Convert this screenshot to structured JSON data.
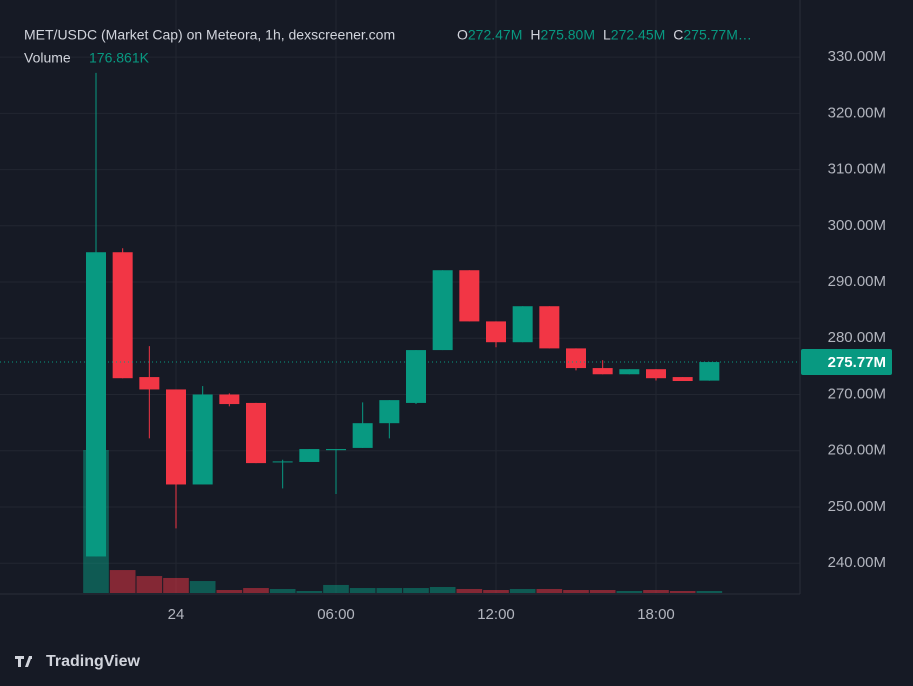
{
  "chart_data": {
    "type": "candlestick",
    "title": "MET/USDC (Market Cap) on Meteora, 1h, dexscreener.com",
    "ohlc_keys": [
      "O",
      "H",
      "L",
      "C"
    ],
    "ohlc_labels": [
      "272.47M",
      "275.80M",
      "272.45M",
      "275.77M…"
    ],
    "volume_title": "Volume",
    "volume_label": "176.861K",
    "last_price_label": "275.77M",
    "brand": "TradingView",
    "up_color": "#089981",
    "down_color": "#f23645",
    "x": [
      0,
      1,
      2,
      3,
      4,
      5,
      6,
      7,
      8,
      9,
      10,
      11,
      12,
      13,
      14,
      15,
      16,
      17,
      18,
      19,
      20,
      21,
      22,
      23
    ],
    "xlim": [
      -3.6,
      26.4
    ],
    "xticks": [
      {
        "value": 3,
        "label": "24"
      },
      {
        "value": 9,
        "label": "06:00"
      },
      {
        "value": 15,
        "label": "12:00"
      },
      {
        "value": 21,
        "label": "18:00"
      }
    ],
    "open": [
      241.2,
      295.3,
      273.1,
      270.9,
      254.0,
      270.0,
      268.5,
      258.0,
      258.0,
      260.1,
      260.5,
      264.9,
      268.5,
      277.9,
      292.1,
      283.0,
      279.3,
      285.7,
      278.2,
      274.7,
      273.6,
      274.5,
      273.1,
      272.47
    ],
    "high": [
      327.2,
      296.0,
      278.6,
      270.9,
      271.5,
      270.2,
      268.5,
      258.4,
      260.3,
      260.3,
      268.6,
      269.0,
      277.9,
      292.1,
      292.1,
      283.0,
      285.7,
      285.7,
      278.2,
      276.1,
      274.5,
      274.5,
      273.1,
      275.8
    ],
    "low": [
      241.2,
      272.9,
      262.2,
      246.2,
      254.0,
      267.9,
      257.8,
      253.3,
      258.0,
      252.3,
      260.5,
      262.2,
      268.3,
      277.9,
      283.0,
      278.4,
      279.3,
      278.2,
      274.3,
      273.6,
      273.6,
      272.5,
      272.4,
      272.45
    ],
    "close": [
      295.3,
      272.9,
      270.9,
      254.0,
      270.0,
      268.3,
      257.8,
      258.1,
      260.3,
      260.3,
      264.9,
      269.0,
      277.9,
      292.1,
      283.0,
      279.3,
      285.7,
      278.2,
      274.7,
      273.6,
      274.5,
      272.9,
      272.4,
      275.77
    ],
    "volume": [
      12650,
      2030,
      1500,
      1330,
      1060,
      265,
      440,
      355,
      177,
      710,
      440,
      440,
      440,
      530,
      355,
      265,
      355,
      355,
      265,
      265,
      177,
      265,
      177,
      176.861
    ],
    "ylim": [
      234.7,
      336.6
    ],
    "yticks": [
      {
        "value": 240,
        "label": "240.00M"
      },
      {
        "value": 250,
        "label": "250.00M"
      },
      {
        "value": 260,
        "label": "260.00M"
      },
      {
        "value": 270,
        "label": "270.00M"
      },
      {
        "value": 280,
        "label": "280.00M"
      },
      {
        "value": 290,
        "label": "290.00M"
      },
      {
        "value": 300,
        "label": "300.00M"
      },
      {
        "value": 310,
        "label": "310.00M"
      },
      {
        "value": 320,
        "label": "320.00M"
      },
      {
        "value": 330,
        "label": "330.00M"
      }
    ],
    "grid": true
  }
}
